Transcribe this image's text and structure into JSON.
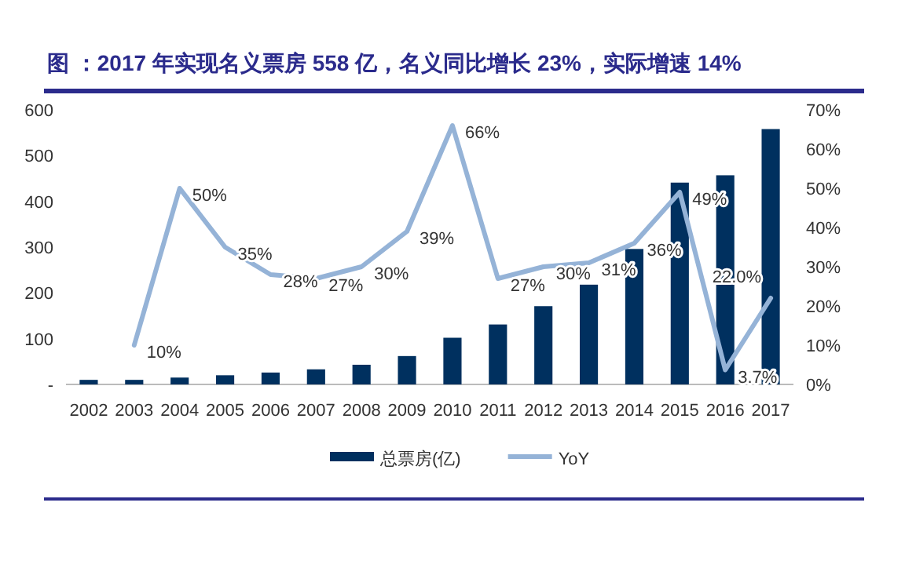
{
  "chart_data": {
    "type": "bar",
    "title": "图  ：2017 年实现名义票房 558 亿，名义同比增长 23%，实际增速 14%",
    "categories": [
      "2002",
      "2003",
      "2004",
      "2005",
      "2006",
      "2007",
      "2008",
      "2009",
      "2010",
      "2011",
      "2012",
      "2013",
      "2014",
      "2015",
      "2016",
      "2017"
    ],
    "series": [
      {
        "name": "总票房(亿)",
        "color": "#00305f",
        "values": [
          10,
          10,
          15,
          20,
          26,
          33,
          43,
          62,
          102,
          131,
          171,
          218,
          296,
          441,
          457,
          558
        ]
      },
      {
        "name": "YoY",
        "type": "line",
        "axis": "y2",
        "color": "#95b3d7",
        "values": [
          null,
          10,
          50,
          35,
          28,
          27,
          30,
          39,
          66,
          27,
          30,
          31,
          36,
          49,
          3.7,
          22.0
        ],
        "value_labels": [
          null,
          "10%",
          "50%",
          "35%",
          "28%",
          "27%",
          "30%",
          "39%",
          "66%",
          "27%",
          "30%",
          "31%",
          "36%",
          "49%",
          "3.7%",
          "22.0%"
        ]
      }
    ],
    "ylim": [
      0,
      600
    ],
    "yticks": [
      {
        "value": 0,
        "label": "-"
      },
      100,
      200,
      300,
      400,
      500,
      600
    ],
    "y2lim": [
      0,
      70
    ],
    "y2ticks": [
      {
        "value": 0,
        "label": "0%"
      },
      {
        "value": 10,
        "label": "10%"
      },
      {
        "value": 20,
        "label": "20%"
      },
      {
        "value": 30,
        "label": "30%"
      },
      {
        "value": 40,
        "label": "40%"
      },
      {
        "value": 50,
        "label": "50%"
      },
      {
        "value": 60,
        "label": "60%"
      },
      {
        "value": 70,
        "label": "70%"
      }
    ],
    "grid": false,
    "legend": "bottom"
  }
}
